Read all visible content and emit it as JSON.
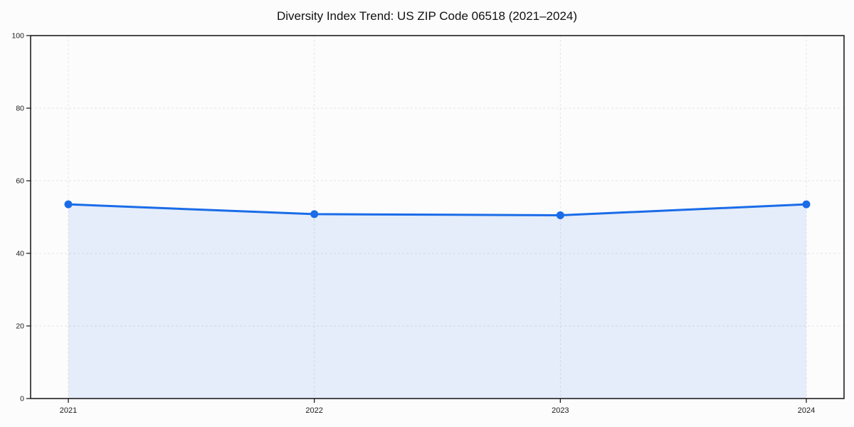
{
  "chart_data": {
    "type": "area",
    "title": "Diversity Index Trend: US ZIP Code 06518 (2021–2024)",
    "x": [
      2021,
      2022,
      2023,
      2024
    ],
    "xtick_labels": [
      "2021",
      "2022",
      "2023",
      "2024"
    ],
    "series": [
      {
        "name": "Diversity Index",
        "values": [
          53.5,
          50.8,
          50.5,
          53.5
        ]
      }
    ],
    "xlabel": "",
    "ylabel": "",
    "ylim": [
      0,
      100
    ],
    "yticks": [
      0,
      20,
      40,
      60,
      80,
      100
    ],
    "grid": true,
    "grid_style": "dashed",
    "legend_position": "none",
    "colors": {
      "line": "#1a6ce8",
      "marker": "#1a6ce8",
      "fill": "rgba(26,108,232,0.10)",
      "grid": "#e3e3e3",
      "spine": "#111111",
      "text": "#1a1a1a",
      "background": "#fcfcfc"
    }
  }
}
